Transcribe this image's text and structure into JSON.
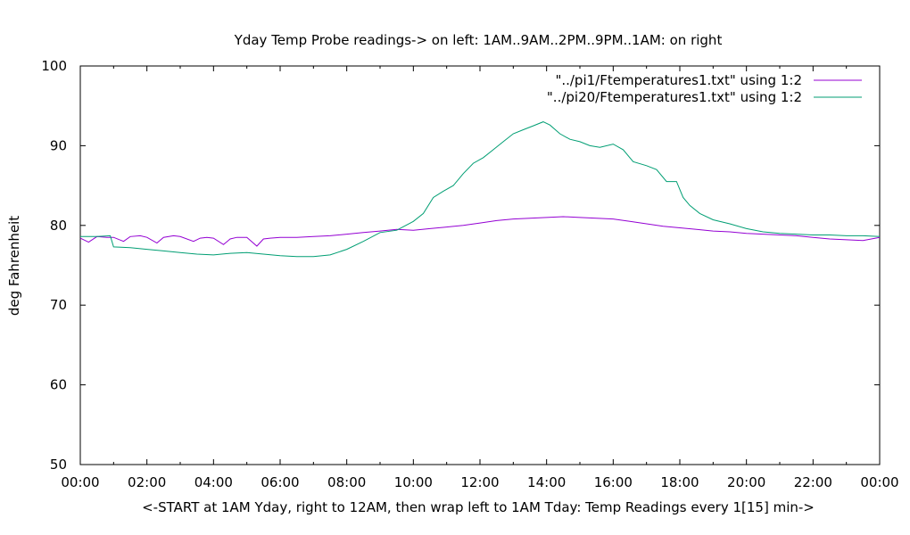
{
  "chart_data": {
    "type": "line",
    "title": "Yday Temp Probe readings-> on left: 1AM..9AM..2PM..9PM..1AM: on right",
    "xlabel": "<-START at 1AM Yday, right to 12AM, then wrap left to 1AM Tday: Temp Readings every 1[15] min->",
    "ylabel": "deg Fahrenheit",
    "xlim": [
      0,
      24
    ],
    "ylim": [
      50,
      100
    ],
    "yticks": [
      50,
      60,
      70,
      80,
      90,
      100
    ],
    "xticks": [
      0,
      2,
      4,
      6,
      8,
      10,
      12,
      14,
      16,
      18,
      20,
      22,
      24
    ],
    "xtick_labels": [
      "00:00",
      "02:00",
      "04:00",
      "06:00",
      "08:00",
      "10:00",
      "12:00",
      "14:00",
      "16:00",
      "18:00",
      "20:00",
      "22:00",
      "00:00"
    ],
    "grid": false,
    "legend_position": "top-right",
    "series": [
      {
        "name": "\"../pi1/Ftemperatures1.txt\" using 1:2",
        "color": "#9400d3",
        "x": [
          0,
          0.25,
          0.5,
          0.8,
          1.0,
          1.3,
          1.5,
          1.8,
          2.0,
          2.3,
          2.5,
          2.8,
          3.0,
          3.4,
          3.6,
          3.8,
          4.0,
          4.3,
          4.5,
          4.7,
          5.0,
          5.3,
          5.5,
          5.7,
          6.0,
          6.5,
          7.0,
          7.5,
          8.0,
          8.5,
          9.0,
          9.5,
          10.0,
          10.5,
          11.0,
          11.5,
          12.0,
          12.5,
          13.0,
          13.5,
          14.0,
          14.5,
          15.0,
          15.5,
          16.0,
          16.5,
          17.0,
          17.5,
          18.0,
          18.5,
          19.0,
          19.5,
          20.0,
          20.5,
          21.0,
          21.5,
          22.0,
          22.5,
          23.0,
          23.5,
          24.0
        ],
        "values": [
          78.4,
          77.9,
          78.6,
          78.5,
          78.5,
          78.0,
          78.6,
          78.7,
          78.5,
          77.8,
          78.5,
          78.7,
          78.6,
          78.0,
          78.4,
          78.5,
          78.4,
          77.6,
          78.3,
          78.5,
          78.5,
          77.4,
          78.3,
          78.4,
          78.5,
          78.5,
          78.6,
          78.7,
          78.9,
          79.1,
          79.3,
          79.5,
          79.4,
          79.6,
          79.8,
          80.0,
          80.3,
          80.6,
          80.8,
          80.9,
          81.0,
          81.1,
          81.0,
          80.9,
          80.8,
          80.5,
          80.2,
          79.9,
          79.7,
          79.5,
          79.3,
          79.2,
          79.0,
          78.9,
          78.8,
          78.7,
          78.5,
          78.3,
          78.2,
          78.1,
          78.5
        ]
      },
      {
        "name": "\"../pi20/Ftemperatures1.txt\" using 1:2",
        "color": "#009e73",
        "x": [
          0,
          0.5,
          0.9,
          1.0,
          1.5,
          2.0,
          2.5,
          3.0,
          3.5,
          4.0,
          4.5,
          5.0,
          5.5,
          6.0,
          6.5,
          7.0,
          7.5,
          8.0,
          8.5,
          9.0,
          9.5,
          10.0,
          10.3,
          10.6,
          10.9,
          11.2,
          11.5,
          11.8,
          12.1,
          12.4,
          12.7,
          13.0,
          13.3,
          13.6,
          13.9,
          14.1,
          14.4,
          14.7,
          15.0,
          15.3,
          15.6,
          16.0,
          16.3,
          16.6,
          17.0,
          17.3,
          17.6,
          17.9,
          18.1,
          18.3,
          18.6,
          19.0,
          19.5,
          20.0,
          20.5,
          21.0,
          21.5,
          22.0,
          22.5,
          23.0,
          23.5,
          24.0
        ],
        "values": [
          78.6,
          78.6,
          78.7,
          77.3,
          77.2,
          77.0,
          76.8,
          76.6,
          76.4,
          76.3,
          76.5,
          76.6,
          76.4,
          76.2,
          76.1,
          76.1,
          76.3,
          77.0,
          78.0,
          79.1,
          79.4,
          80.5,
          81.5,
          83.5,
          84.3,
          85.0,
          86.5,
          87.8,
          88.5,
          89.5,
          90.5,
          91.5,
          92.0,
          92.5,
          93.0,
          92.6,
          91.5,
          90.8,
          90.5,
          90.0,
          89.8,
          90.2,
          89.5,
          88.0,
          87.5,
          87.0,
          85.5,
          85.5,
          83.5,
          82.5,
          81.5,
          80.7,
          80.2,
          79.6,
          79.2,
          79.0,
          78.9,
          78.8,
          78.8,
          78.7,
          78.7,
          78.6
        ]
      }
    ]
  }
}
